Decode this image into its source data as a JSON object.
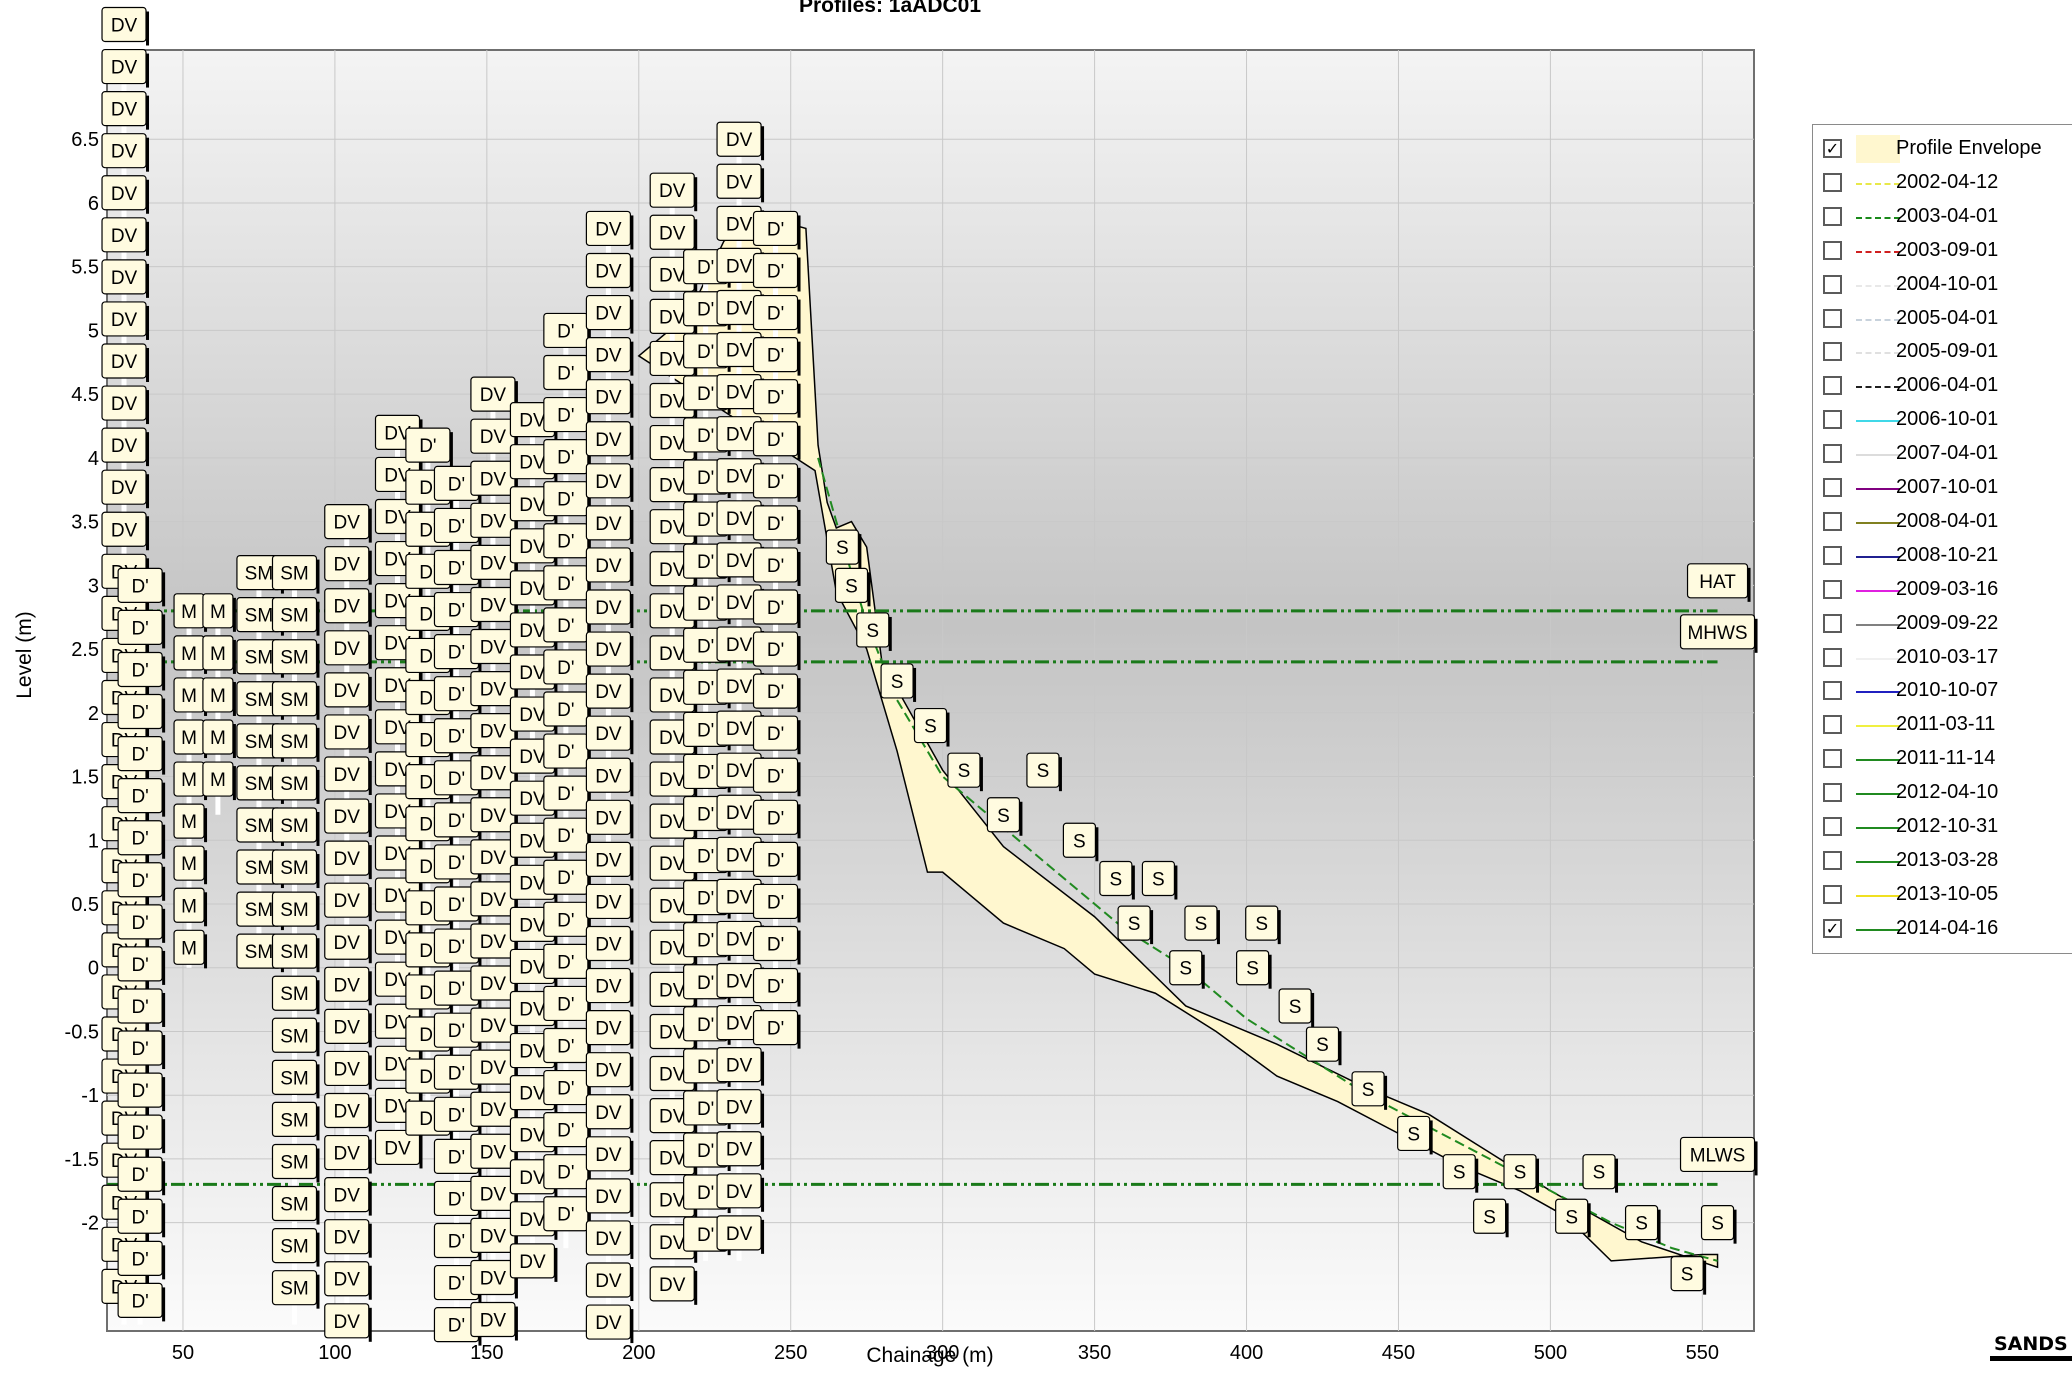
{
  "chart_data": {
    "type": "line",
    "title": "Profiles: 1aADC01",
    "xlabel": "Chainage (m)",
    "ylabel": "Level (m)",
    "xlim": [
      25,
      567
    ],
    "ylim": [
      -2.85,
      7.2
    ],
    "x_ticks": [
      "50",
      "100",
      "150",
      "200",
      "250",
      "300",
      "350",
      "400",
      "450",
      "500",
      "550"
    ],
    "x_tick_values": [
      50,
      100,
      150,
      200,
      250,
      300,
      350,
      400,
      450,
      500,
      550
    ],
    "y_ticks": [
      "6.5",
      "6",
      "5.5",
      "5",
      "4.5",
      "4",
      "3.5",
      "3",
      "2.5",
      "2",
      "1.5",
      "1",
      "0.5",
      "0",
      "-0.5",
      "-1",
      "-1.5",
      "-2"
    ],
    "y_tick_values": [
      6.5,
      6,
      5.5,
      5,
      4.5,
      4,
      3.5,
      3,
      2.5,
      2,
      1.5,
      1,
      0.5,
      0,
      -0.5,
      -1,
      -1.5,
      -2
    ],
    "grid": true,
    "legend_position": "right",
    "reference_lines": [
      {
        "name": "HAT",
        "y": 2.8
      },
      {
        "name": "MHWS",
        "y": 2.4
      },
      {
        "name": "MLWS",
        "y": -1.7
      }
    ],
    "envelope": {
      "name": "Profile Envelope",
      "upper": [
        [
          200,
          4.8
        ],
        [
          210,
          5.0
        ],
        [
          220,
          5.3
        ],
        [
          228,
          5.7
        ],
        [
          240,
          5.9
        ],
        [
          255,
          5.8
        ],
        [
          259,
          4.1
        ],
        [
          262,
          3.65
        ],
        [
          265,
          3.45
        ],
        [
          270,
          3.5
        ],
        [
          275,
          3.3
        ],
        [
          280,
          2.4
        ],
        [
          300,
          1.55
        ],
        [
          320,
          0.95
        ],
        [
          350,
          0.4
        ],
        [
          380,
          -0.3
        ],
        [
          410,
          -0.6
        ],
        [
          440,
          -0.95
        ],
        [
          460,
          -1.15
        ],
        [
          480,
          -1.45
        ],
        [
          500,
          -1.75
        ],
        [
          530,
          -2.15
        ],
        [
          555,
          -2.35
        ]
      ],
      "lower": [
        [
          258,
          3.9
        ],
        [
          265,
          2.95
        ],
        [
          275,
          2.5
        ],
        [
          285,
          1.7
        ],
        [
          295,
          0.75
        ],
        [
          300,
          0.75
        ],
        [
          320,
          0.35
        ],
        [
          340,
          0.15
        ],
        [
          350,
          -0.05
        ],
        [
          370,
          -0.2
        ],
        [
          390,
          -0.5
        ],
        [
          410,
          -0.85
        ],
        [
          430,
          -1.05
        ],
        [
          450,
          -1.3
        ],
        [
          470,
          -1.55
        ],
        [
          490,
          -1.75
        ],
        [
          505,
          -1.95
        ],
        [
          520,
          -2.3
        ],
        [
          550,
          -2.25
        ],
        [
          555,
          -2.25
        ]
      ]
    },
    "series": [
      {
        "name": "2014-04-16",
        "x": [
          259,
          265,
          275,
          285,
          300,
          320,
          340,
          360,
          380,
          400,
          420,
          440,
          460,
          480,
          500,
          520,
          540,
          555
        ],
        "y": [
          4.0,
          3.5,
          2.7,
          2.1,
          1.5,
          1.1,
          0.7,
          0.3,
          0.0,
          -0.4,
          -0.7,
          -1.0,
          -1.25,
          -1.5,
          -1.75,
          -2.0,
          -2.2,
          -2.3
        ]
      }
    ],
    "feature_labels": {
      "columns": [
        {
          "x": 30.6,
          "text": "DV",
          "y_top": 7.4,
          "y_bottom": -2.8
        },
        {
          "x": 35.9,
          "text": "D'",
          "y_top": 3.0,
          "y_bottom": -2.8
        },
        {
          "x": 52.0,
          "text": "M",
          "y_top": 2.8,
          "y_bottom": 0.0
        },
        {
          "x": 61.5,
          "text": "M",
          "y_top": 2.8,
          "y_bottom": 1.2
        },
        {
          "x": 75.0,
          "text": "SM",
          "y_top": 3.1,
          "y_bottom": 0.0
        },
        {
          "x": 86.7,
          "text": "SM",
          "y_top": 3.1,
          "y_bottom": -2.8
        },
        {
          "x": 103.9,
          "text": "DV",
          "y_top": 3.5,
          "y_bottom": -2.8
        },
        {
          "x": 120.6,
          "text": "DV",
          "y_top": 4.2,
          "y_bottom": -1.5
        },
        {
          "x": 130.6,
          "text": "D'",
          "y_top": 4.1,
          "y_bottom": -1.2
        },
        {
          "x": 140.0,
          "text": "D'",
          "y_top": 3.8,
          "y_bottom": -2.8
        },
        {
          "x": 152.0,
          "text": "DV",
          "y_top": 4.5,
          "y_bottom": -2.8
        },
        {
          "x": 165.0,
          "text": "DV",
          "y_top": 4.3,
          "y_bottom": -2.4
        },
        {
          "x": 176.0,
          "text": "D'",
          "y_top": 5.0,
          "y_bottom": -2.2
        },
        {
          "x": 190.0,
          "text": "DV",
          "y_top": 5.8,
          "y_bottom": -2.8
        },
        {
          "x": 211.0,
          "text": "DV",
          "y_top": 6.1,
          "y_bottom": -2.6
        },
        {
          "x": 222.0,
          "text": "D'",
          "y_top": 5.5,
          "y_bottom": -2.3
        },
        {
          "x": 233.0,
          "text": "DV",
          "y_top": 6.5,
          "y_bottom": -2.3
        },
        {
          "x": 245.0,
          "text": "D'",
          "y_top": 5.8,
          "y_bottom": -0.5
        }
      ],
      "S_markers": [
        [
          267,
          3.3
        ],
        [
          270,
          3.0
        ],
        [
          277,
          2.65
        ],
        [
          285,
          2.25
        ],
        [
          296,
          1.9
        ],
        [
          307,
          1.55
        ],
        [
          320,
          1.2
        ],
        [
          333,
          1.55
        ],
        [
          345,
          1.0
        ],
        [
          357,
          0.7
        ],
        [
          371,
          0.7
        ],
        [
          363,
          0.35
        ],
        [
          385,
          0.35
        ],
        [
          405,
          0.35
        ],
        [
          380,
          0.0
        ],
        [
          402,
          0.0
        ],
        [
          416,
          -0.3
        ],
        [
          425,
          -0.6
        ],
        [
          440,
          -0.95
        ],
        [
          455,
          -1.3
        ],
        [
          470,
          -1.6
        ],
        [
          490,
          -1.6
        ],
        [
          516,
          -1.6
        ],
        [
          480,
          -1.95
        ],
        [
          507,
          -1.95
        ],
        [
          530,
          -2.0
        ],
        [
          555,
          -2.0
        ],
        [
          545,
          -2.4
        ]
      ],
      "S_text": "S"
    }
  },
  "legend": {
    "items": [
      {
        "label": "Profile Envelope",
        "checked": true,
        "color": "#fff7cf",
        "style": "fill"
      },
      {
        "label": "2002-04-12",
        "checked": false,
        "color": "#e8e84a",
        "style": "dashed"
      },
      {
        "label": "2003-04-01",
        "checked": false,
        "color": "#1a8a1a",
        "style": "dashed"
      },
      {
        "label": "2003-09-01",
        "checked": false,
        "color": "#d02020",
        "style": "dashed"
      },
      {
        "label": "2004-10-01",
        "checked": false,
        "color": "#e8e8e8",
        "style": "dashed"
      },
      {
        "label": "2005-04-01",
        "checked": false,
        "color": "#c8d2dc",
        "style": "dashed"
      },
      {
        "label": "2005-09-01",
        "checked": false,
        "color": "#e0e0e0",
        "style": "dashed"
      },
      {
        "label": "2006-04-01",
        "checked": false,
        "color": "#202020",
        "style": "dashed"
      },
      {
        "label": "2006-10-01",
        "checked": false,
        "color": "#40d8e8",
        "style": "solid"
      },
      {
        "label": "2007-04-01",
        "checked": false,
        "color": "#dcdcdc",
        "style": "solid"
      },
      {
        "label": "2007-10-01",
        "checked": false,
        "color": "#800080",
        "style": "solid"
      },
      {
        "label": "2008-04-01",
        "checked": false,
        "color": "#808020",
        "style": "solid"
      },
      {
        "label": "2008-10-21",
        "checked": false,
        "color": "#202090",
        "style": "solid"
      },
      {
        "label": "2009-03-16",
        "checked": false,
        "color": "#e020e0",
        "style": "solid"
      },
      {
        "label": "2009-09-22",
        "checked": false,
        "color": "#808080",
        "style": "solid"
      },
      {
        "label": "2010-03-17",
        "checked": false,
        "color": "#f0f0f0",
        "style": "solid"
      },
      {
        "label": "2010-10-07",
        "checked": false,
        "color": "#2020c0",
        "style": "solid"
      },
      {
        "label": "2011-03-11",
        "checked": false,
        "color": "#f0f040",
        "style": "solid"
      },
      {
        "label": "2011-11-14",
        "checked": false,
        "color": "#208a20",
        "style": "solid"
      },
      {
        "label": "2012-04-10",
        "checked": false,
        "color": "#208a20",
        "style": "solid"
      },
      {
        "label": "2012-10-31",
        "checked": false,
        "color": "#208a20",
        "style": "solid"
      },
      {
        "label": "2013-03-28",
        "checked": false,
        "color": "#208a20",
        "style": "solid"
      },
      {
        "label": "2013-10-05",
        "checked": false,
        "color": "#f0e020",
        "style": "solid"
      },
      {
        "label": "2014-04-16",
        "checked": true,
        "color": "#208a20",
        "style": "solid"
      }
    ]
  },
  "logo": {
    "text": "SANDS"
  },
  "colors": {
    "envelope_fill": "#fff7cf",
    "reference_line": "#1a7a1a",
    "label_fill": "#fffbe0",
    "grid": "#c8c8c8"
  }
}
